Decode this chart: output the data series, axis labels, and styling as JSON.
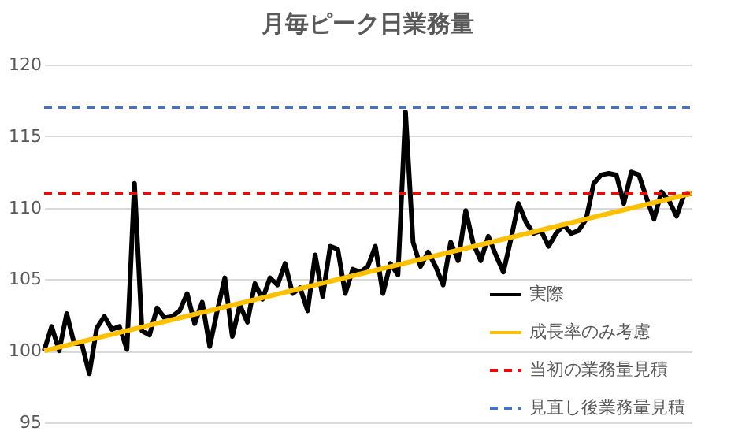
{
  "chart_data": {
    "type": "line",
    "title": "月毎ピーク日業務量",
    "categories": [
      null,
      null,
      null,
      null,
      null,
      null,
      null,
      null,
      null,
      null,
      null,
      null,
      null,
      null,
      null,
      null,
      null,
      null,
      null,
      null,
      null,
      null,
      null,
      null,
      null,
      null,
      null,
      null,
      null,
      null,
      null,
      null,
      null,
      null,
      null,
      null,
      null,
      null,
      null,
      null,
      null,
      null,
      null,
      null,
      null,
      null,
      null,
      null,
      null,
      null,
      null,
      null,
      null,
      null,
      null,
      null,
      null,
      null,
      null,
      null,
      null,
      null,
      null,
      null,
      null,
      null,
      null,
      null,
      null,
      null,
      null,
      null,
      null,
      null,
      null,
      null,
      null,
      null,
      null,
      null,
      null,
      null,
      null,
      null,
      null,
      null,
      null
    ],
    "series": [
      {
        "name": "実際",
        "color": "#000000",
        "values": [
          100,
          101.7,
          100,
          102.6,
          100.5,
          100.5,
          98.4,
          101.6,
          102.4,
          101.5,
          101.7,
          100.1,
          111.7,
          101.4,
          101.1,
          103.0,
          102.3,
          102.4,
          102.8,
          104.0,
          101.9,
          103.4,
          100.3,
          102.8,
          105.1,
          101.0,
          103.2,
          102.0,
          104.7,
          103.6,
          105.1,
          104.6,
          106.1,
          104.0,
          104.4,
          102.8,
          106.7,
          103.8,
          107.3,
          107.1,
          104.0,
          105.7,
          105.5,
          105.9,
          107.3,
          104.0,
          106.1,
          105.3,
          116.7,
          107.6,
          105.9,
          106.9,
          105.9,
          104.6,
          107.6,
          106.3,
          109.8,
          107.5,
          106.3,
          108.0,
          106.7,
          105.5,
          107.8,
          110.3,
          109.0,
          108.2,
          108.4,
          107.3,
          108.2,
          108.8,
          108.2,
          108.4,
          109.2,
          111.7,
          112.3,
          112.4,
          112.3,
          110.3,
          112.5,
          112.3,
          110.7,
          109.2,
          111.1,
          110.5,
          109.4,
          110.9,
          111.0
        ]
      },
      {
        "name": "成長率のみ考慮",
        "color": "#ffc000",
        "values": [
          100,
          null,
          null,
          null,
          null,
          null,
          null,
          null,
          null,
          null,
          null,
          null,
          null,
          null,
          null,
          null,
          null,
          null,
          null,
          null,
          null,
          null,
          null,
          null,
          null,
          null,
          null,
          null,
          null,
          null,
          null,
          null,
          null,
          null,
          null,
          null,
          null,
          null,
          null,
          null,
          null,
          null,
          null,
          null,
          null,
          null,
          null,
          null,
          null,
          null,
          null,
          null,
          null,
          null,
          null,
          null,
          null,
          null,
          null,
          null,
          null,
          null,
          null,
          null,
          null,
          null,
          null,
          null,
          null,
          null,
          null,
          null,
          null,
          null,
          null,
          null,
          null,
          null,
          null,
          null,
          null,
          null,
          null,
          null,
          null,
          null,
          111
        ]
      }
    ],
    "ref_lines": [
      {
        "axis": "y",
        "value": 111,
        "label": "当初の業務量見積",
        "color": "#ff0000",
        "line_style": "dashed"
      },
      {
        "axis": "y",
        "value": 117,
        "label": "見直し後業務量見積",
        "color": "#4472c4",
        "line_style": "dashed"
      }
    ],
    "ylim": [
      95,
      120
    ],
    "yticks": [
      95,
      100,
      105,
      110,
      115,
      120
    ],
    "grid": "y",
    "legend": "bottom right",
    "tick_labels": "y",
    "line_style": "solid",
    "marker": "none"
  }
}
